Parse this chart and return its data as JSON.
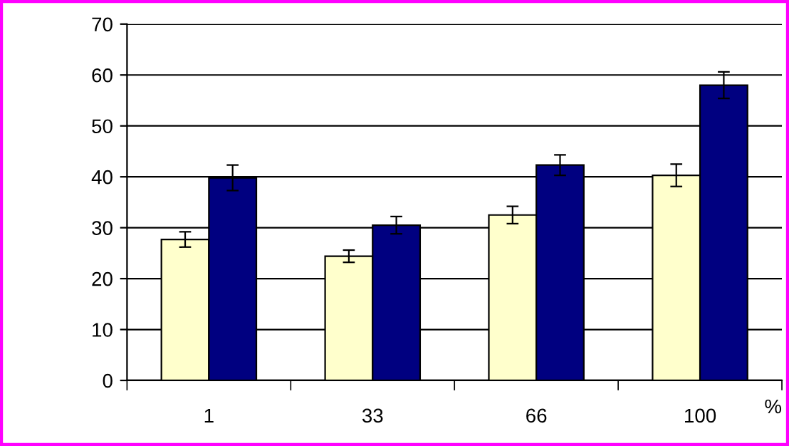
{
  "chart_data": {
    "type": "bar",
    "categories": [
      "1",
      "33",
      "66",
      "100"
    ],
    "xlabel": "%",
    "series": [
      {
        "color": "#ffffcc",
        "values": [
          27.7,
          24.4,
          32.5,
          40.3
        ],
        "errors": [
          1.5,
          1.2,
          1.7,
          2.2
        ]
      },
      {
        "color": "#000080",
        "values": [
          39.8,
          30.5,
          42.3,
          58
        ],
        "errors": [
          2.5,
          1.7,
          2,
          2.6
        ]
      }
    ],
    "ylim": [
      0,
      70
    ],
    "yticks": [
      0,
      10,
      20,
      30,
      40,
      50,
      60,
      70
    ],
    "grid": "y",
    "legend": false
  }
}
